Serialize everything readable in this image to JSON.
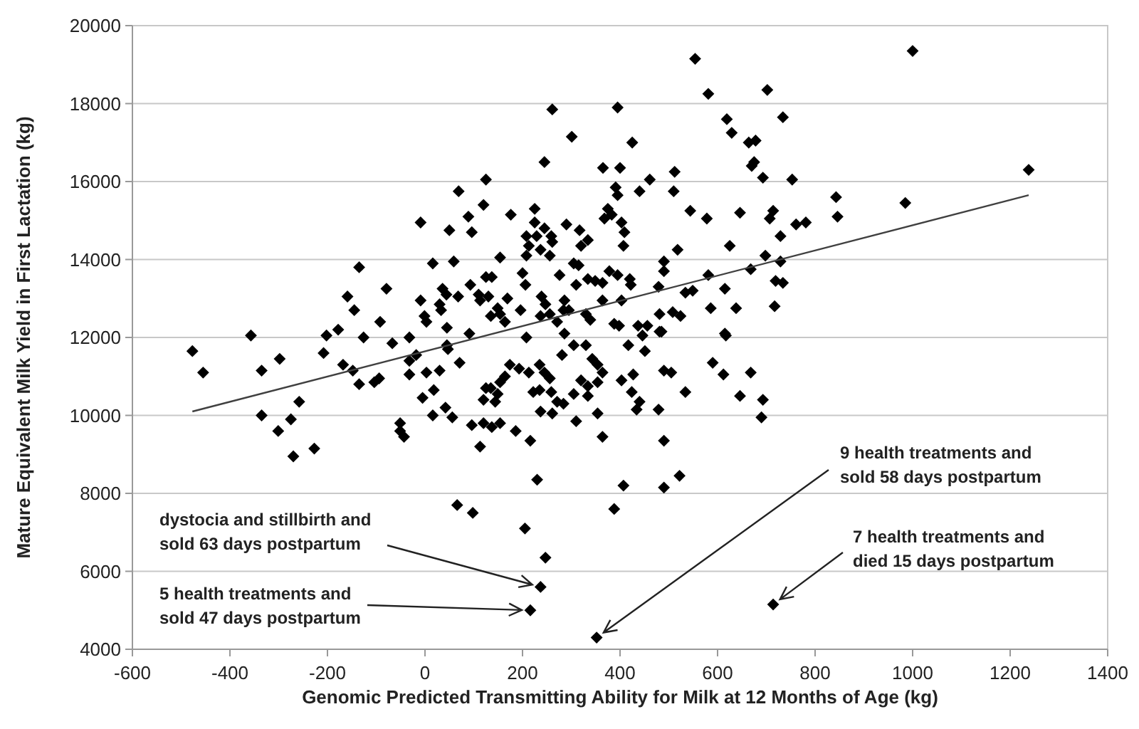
{
  "chart_data": {
    "type": "scatter",
    "xlabel": "Genomic Predicted Transmitting Ability for Milk at 12 Months of Age (kg)",
    "ylabel": "Mature Equivalent Milk Yield in First Lactation (kg)",
    "xlim": [
      -600,
      1400
    ],
    "xticks": [
      -600,
      -400,
      -200,
      0,
      200,
      400,
      600,
      800,
      1000,
      1200,
      1400
    ],
    "ylim": [
      4000,
      20000
    ],
    "yticks": [
      4000,
      6000,
      8000,
      10000,
      12000,
      14000,
      16000,
      18000,
      20000
    ],
    "grid": "y",
    "series": [
      {
        "marker": "diamond",
        "color": "#000000",
        "x": [
          -477,
          -455,
          -357,
          -335,
          -335,
          -298,
          -301,
          -275,
          -270,
          -258,
          -227,
          -208,
          -202,
          -178,
          -168,
          -148,
          -135,
          -126,
          -104,
          -94,
          -67,
          -51,
          -51,
          -43,
          -32,
          -32,
          -32,
          -18,
          -5,
          3,
          18,
          16,
          30,
          42,
          45,
          -9,
          16,
          -135,
          -79,
          -159,
          -145,
          -92,
          -9,
          -1,
          3,
          30,
          36,
          33,
          45,
          50,
          554,
          581,
          619,
          629,
          664,
          261,
          395,
          301,
          425,
          245,
          365,
          400,
          512,
          125,
          461,
          391,
          395,
          440,
          510,
          69,
          120,
          225,
          544,
          578,
          646,
          89,
          176,
          375,
          383,
          368,
          403,
          409,
          96,
          225,
          245,
          208,
          229,
          259,
          290,
          317,
          213,
          237,
          261,
          320,
          334,
          407,
          208,
          256,
          154,
          518,
          625,
          59,
          305,
          315,
          490,
          490,
          378,
          200,
          276,
          125,
          137,
          395,
          420,
          334,
          349,
          364,
          206,
          93,
          310,
          422,
          479,
          581,
          615,
          668,
          44,
          68,
          110,
          113,
          130,
          169,
          239,
          247,
          286,
          295,
          364,
          403,
          534,
          549,
          586,
          638,
          149,
          154,
          135,
          196,
          164,
          237,
          256,
          271,
          284,
          330,
          339,
          388,
          398,
          437,
          456,
          481,
          508,
          524,
          485,
          615,
          91,
          208,
          1000,
          702,
          734,
          678,
          670,
          675,
          693,
          753,
          1238,
          714,
          707,
          729,
          761,
          781,
          843,
          846,
          985,
          698,
          729,
          719,
          734,
          717,
          47,
          71,
          56,
          96,
          120,
          137,
          154,
          113,
          186,
          216,
          230,
          310,
          364,
          490,
          407,
          490,
          522,
          66,
          98,
          388,
          205,
          247,
          237,
          216,
          352,
          125,
          135,
          149,
          120,
          144,
          154,
          164,
          174,
          193,
          213,
          235,
          245,
          256,
          222,
          235,
          259,
          271,
          284,
          237,
          261,
          281,
          305,
          330,
          343,
          354,
          364,
          320,
          334,
          305,
          334,
          354,
          354,
          417,
          451,
          427,
          403,
          424,
          440,
          434,
          479,
          490,
          505,
          534,
          590,
          612,
          617,
          646,
          668,
          446,
          481,
          286,
          693,
          690,
          714
        ],
        "values": [
          11650,
          11100,
          12050,
          11150,
          10000,
          11450,
          9600,
          9900,
          8950,
          10350,
          9150,
          11600,
          12050,
          12200,
          11300,
          11150,
          10800,
          12000,
          10850,
          10950,
          11850,
          9800,
          9600,
          9450,
          12000,
          11400,
          11050,
          11550,
          10450,
          11100,
          10650,
          10000,
          11150,
          10200,
          11800,
          14950,
          13900,
          13800,
          13250,
          13050,
          12700,
          12400,
          12950,
          12550,
          12400,
          12850,
          13250,
          12700,
          12250,
          14750,
          19150,
          18250,
          17600,
          17250,
          17000,
          17850,
          17900,
          17150,
          17000,
          16500,
          16350,
          16350,
          16250,
          16050,
          16050,
          15850,
          15650,
          15750,
          15750,
          15750,
          15400,
          15300,
          15250,
          15050,
          15200,
          15100,
          15150,
          15300,
          15150,
          15050,
          14950,
          14700,
          14700,
          14950,
          14800,
          14600,
          14600,
          14600,
          14900,
          14750,
          14350,
          14250,
          14450,
          14350,
          14500,
          14350,
          14100,
          14100,
          14050,
          14250,
          14350,
          13950,
          13900,
          13850,
          13950,
          13700,
          13700,
          13650,
          13600,
          13550,
          13550,
          13600,
          13500,
          13500,
          13450,
          13400,
          13350,
          13350,
          13350,
          13350,
          13300,
          13600,
          13250,
          13750,
          13100,
          13050,
          13100,
          12950,
          13050,
          13000,
          13050,
          12850,
          12950,
          12700,
          12950,
          12950,
          13150,
          13200,
          12750,
          12750,
          12750,
          12600,
          12550,
          12700,
          12400,
          12550,
          12600,
          12400,
          12700,
          12600,
          12450,
          12350,
          12300,
          12300,
          12300,
          12600,
          12650,
          12550,
          12150,
          12100,
          12100,
          12000,
          19350,
          18350,
          17650,
          17050,
          16400,
          16500,
          16100,
          16050,
          16300,
          15250,
          15050,
          14600,
          14900,
          14950,
          15600,
          15100,
          15450,
          14100,
          13950,
          13450,
          13400,
          12800,
          11700,
          11350,
          9950,
          9750,
          9800,
          9700,
          9800,
          9200,
          9600,
          9350,
          8350,
          9850,
          9450,
          9350,
          8200,
          8150,
          8450,
          7700,
          7500,
          7600,
          7100,
          6350,
          5600,
          5000,
          4300,
          10700,
          10700,
          10550,
          10400,
          10350,
          10850,
          11000,
          11300,
          11200,
          11100,
          11300,
          11100,
          10950,
          10600,
          10650,
          10600,
          10350,
          10300,
          10100,
          10050,
          11550,
          11800,
          11800,
          11450,
          11300,
          11100,
          10900,
          10750,
          10550,
          10500,
          10850,
          10050,
          11800,
          11650,
          11050,
          10900,
          10600,
          10350,
          10150,
          10150,
          11150,
          11100,
          10600,
          11350,
          11050,
          12050,
          10500,
          11100,
          12050,
          12150,
          12100,
          10400,
          9950,
          5150
        ]
      },
      {
        "type": "line",
        "color": "#404040",
        "x": [
          -477,
          1238
        ],
        "values": [
          10100,
          15650
        ]
      }
    ],
    "annotations": [
      {
        "text": "dystocia and stillbirth and\nsold 63 days postpartum",
        "x": 237,
        "y": 5600
      },
      {
        "text": "5 health treatments and\nsold 47 days postpartum",
        "x": 216,
        "y": 5000
      },
      {
        "text": "9 health treatments and\nsold 58 days postpartum",
        "x": 352,
        "y": 4300
      },
      {
        "text": "7 health treatments and\ndied 15 days postpartum",
        "x": 714,
        "y": 5150
      }
    ]
  }
}
